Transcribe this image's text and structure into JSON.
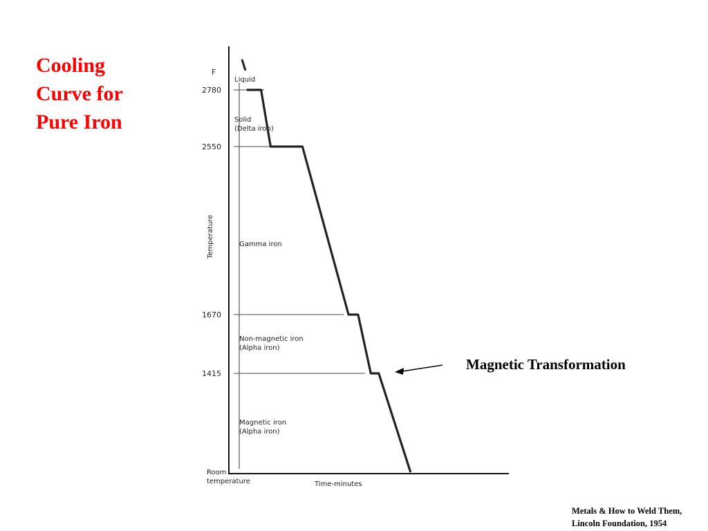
{
  "slide": {
    "title_lines": [
      "Cooling",
      "Curve for",
      "Pure Iron"
    ],
    "annotation": "Magnetic Transformation",
    "source_lines": [
      "Metals  & How to Weld Them,",
      "Lincoln Foundation, 1954"
    ]
  },
  "colors": {
    "title": "#ff0000",
    "text": "#000000",
    "curve": "#222222"
  },
  "chart_data": {
    "type": "line",
    "title": "",
    "xlabel": "Time-minutes",
    "ylabel": "Temperature",
    "y_unit": "F",
    "y_ticks": [
      "2780",
      "2550",
      "1670",
      "1415",
      "Room temperature"
    ],
    "phase_regions": [
      {
        "name": "Liquid",
        "lines": [
          "Liquid"
        ]
      },
      {
        "name": "Solid (Delta iron)",
        "lines": [
          "Solid",
          "(Delta iron)"
        ]
      },
      {
        "name": "Gamma iron",
        "lines": [
          "Gamma iron"
        ]
      },
      {
        "name": "Non-magnetic iron (Alpha iron)",
        "lines": [
          "Non-magnetic iron",
          "(Alpha iron)"
        ]
      },
      {
        "name": "Magnetic iron (Alpha iron)",
        "lines": [
          "Magnetic iron",
          "(Alpha iron)"
        ]
      }
    ],
    "series": [
      {
        "x": [
          0,
          0.3,
          1.2,
          1.8,
          2.6,
          3.8,
          6.7,
          7.3,
          8.1,
          8.6,
          10.6
        ],
        "y": [
          2980,
          2780,
          2780,
          2550,
          2550,
          2550,
          1670,
          1670,
          1415,
          1415,
          70
        ]
      }
    ],
    "plateaus_F": [
      2780,
      2550,
      1670,
      1415
    ],
    "grid": false,
    "legend": "none"
  }
}
